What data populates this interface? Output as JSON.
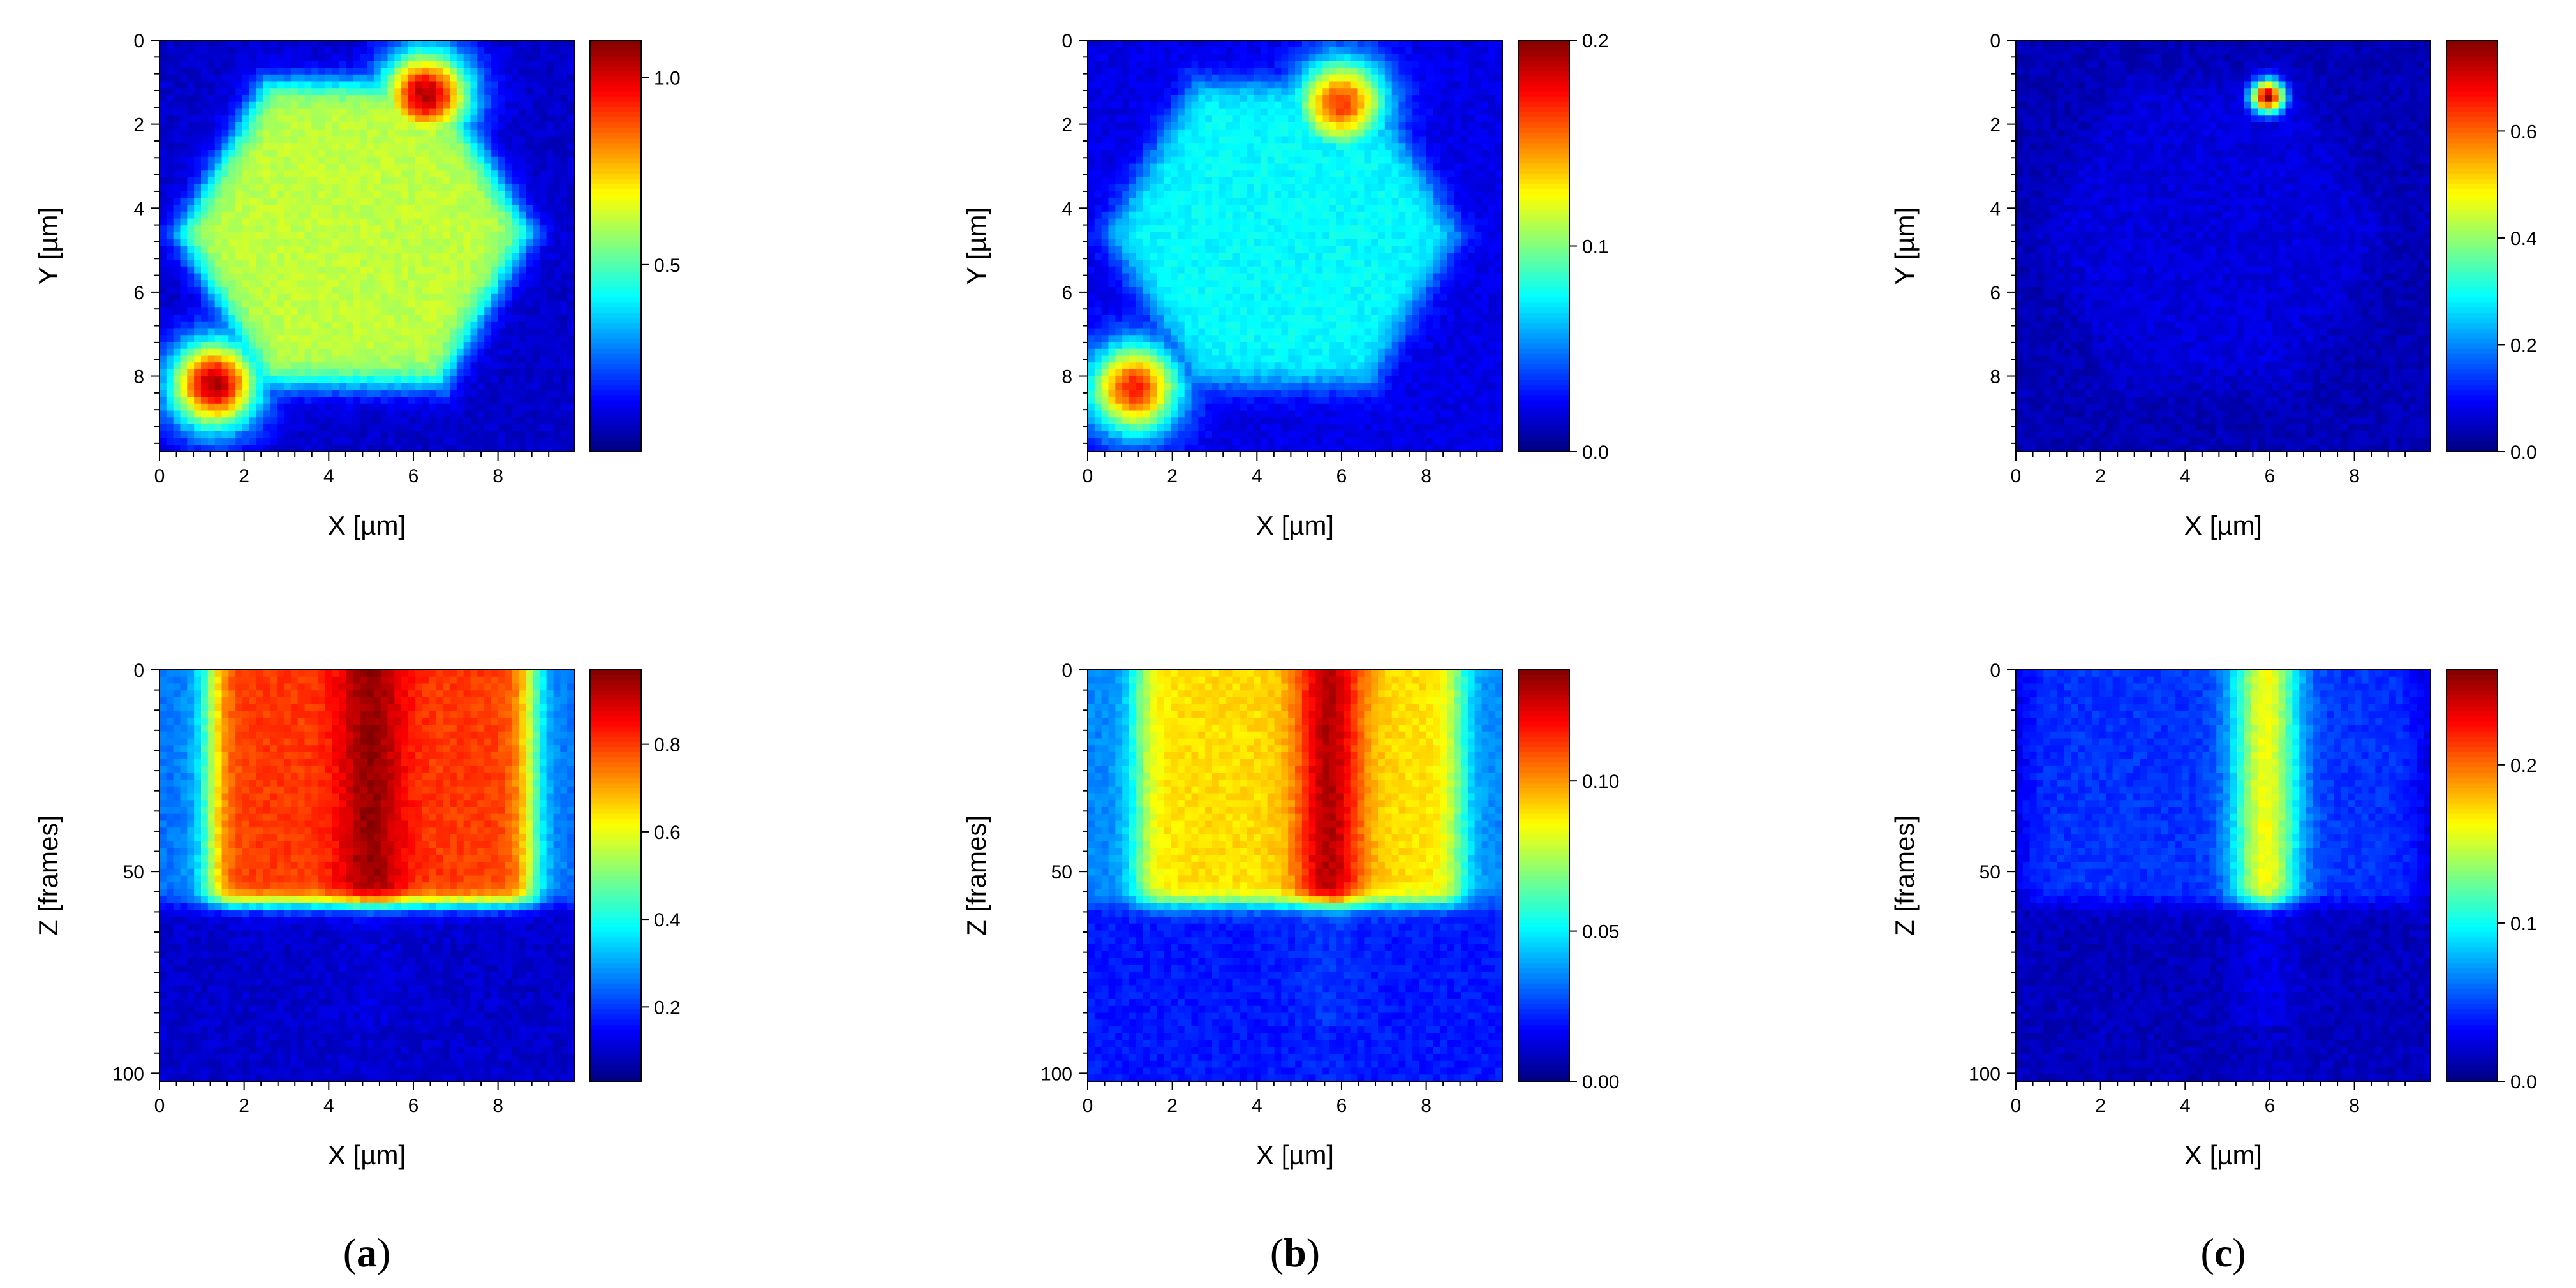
{
  "figure": {
    "panel_tags": [
      {
        "open": "(",
        "letter": "a",
        "close": ")"
      },
      {
        "open": "(",
        "letter": "b",
        "close": ")"
      },
      {
        "open": "(",
        "letter": "c",
        "close": ")"
      }
    ]
  },
  "chart_data": [
    {
      "type": "heatmap",
      "panel": "a",
      "view": "xy",
      "xlabel": "X [µm]",
      "ylabel": "Y [µm]",
      "xlim": [
        0,
        9.8
      ],
      "ylim": [
        9.8,
        0
      ],
      "xticks": [
        "0",
        "2",
        "4",
        "6",
        "8"
      ],
      "yticks": [
        "0",
        "2",
        "4",
        "6",
        "8"
      ],
      "colorbar": {
        "min": 0.0,
        "max": 1.1,
        "ticks": [
          "0.5",
          "1.0"
        ],
        "tick_values": [
          0.5,
          1.0
        ]
      },
      "features": {
        "background": 0.08,
        "hexagon": 0.62,
        "particles": [
          [
            6.3,
            1.3,
            1.05
          ],
          [
            1.3,
            8.2,
            1.05
          ]
        ],
        "spot": null
      }
    },
    {
      "type": "heatmap",
      "panel": "b",
      "view": "xy",
      "xlabel": "X [µm]",
      "ylabel": "Y [µm]",
      "xlim": [
        0,
        9.8
      ],
      "ylim": [
        9.8,
        0
      ],
      "xticks": [
        "0",
        "2",
        "4",
        "6",
        "8"
      ],
      "yticks": [
        "0",
        "2",
        "4",
        "6",
        "8"
      ],
      "colorbar": {
        "min": 0.0,
        "max": 0.2,
        "ticks": [
          "0.0",
          "0.1",
          "0.2"
        ],
        "tick_values": [
          0.0,
          0.1,
          0.2
        ]
      },
      "features": {
        "background": 0.02,
        "hexagon": 0.075,
        "particles": [
          [
            6.0,
            1.5,
            0.165
          ],
          [
            1.1,
            8.3,
            0.17
          ]
        ],
        "spot": null
      }
    },
    {
      "type": "heatmap",
      "panel": "c",
      "view": "xy",
      "xlabel": "X [µm]",
      "ylabel": "Y [µm]",
      "xlim": [
        0,
        9.8
      ],
      "ylim": [
        9.8,
        0
      ],
      "xticks": [
        "0",
        "2",
        "4",
        "6",
        "8"
      ],
      "yticks": [
        "0",
        "2",
        "4",
        "6",
        "8"
      ],
      "colorbar": {
        "min": 0.0,
        "max": 0.77,
        "ticks": [
          "0.0",
          "0.2",
          "0.4",
          "0.6"
        ],
        "tick_values": [
          0.0,
          0.2,
          0.4,
          0.6
        ]
      },
      "features": {
        "background": 0.04,
        "hexagon": 0.07,
        "particles": [],
        "spot": [
          5.95,
          1.35,
          0.75
        ]
      }
    },
    {
      "type": "heatmap",
      "panel": "a",
      "view": "xz",
      "xlabel": "X [µm]",
      "ylabel": "Z [frames]",
      "xlim": [
        0,
        9.8
      ],
      "ylim": [
        102,
        0
      ],
      "xticks": [
        "0",
        "2",
        "4",
        "6",
        "8"
      ],
      "yticks": [
        "0",
        "50",
        "100"
      ],
      "ytick_values": [
        0,
        50,
        100
      ],
      "colorbar": {
        "min": 0.03,
        "max": 0.97,
        "ticks": [
          "0.2",
          "0.4",
          "0.6",
          "0.8"
        ],
        "tick_values": [
          0.2,
          0.4,
          0.6,
          0.8
        ]
      },
      "features": {
        "block": [
          1.2,
          8.8,
          58
        ],
        "block_level": 0.8,
        "peak_x": 5.0,
        "peak_level": 0.95,
        "below_level": 0.1,
        "outside_level": 0.25
      }
    },
    {
      "type": "heatmap",
      "panel": "b",
      "view": "xz",
      "xlabel": "X [µm]",
      "ylabel": "Z [frames]",
      "xlim": [
        0,
        9.8
      ],
      "ylim": [
        102,
        0
      ],
      "xticks": [
        "0",
        "2",
        "4",
        "6",
        "8"
      ],
      "yticks": [
        "0",
        "50",
        "100"
      ],
      "ytick_values": [
        0,
        50,
        100
      ],
      "colorbar": {
        "min": 0.0,
        "max": 0.137,
        "ticks": [
          "0.00",
          "0.05",
          "0.10"
        ],
        "tick_values": [
          0.0,
          0.05,
          0.1
        ]
      },
      "features": {
        "block": [
          1.2,
          8.8,
          58
        ],
        "block_level": 0.09,
        "peak_x": 5.7,
        "peak_level": 0.13,
        "below_level": 0.02,
        "outside_level": 0.035
      }
    },
    {
      "type": "heatmap",
      "panel": "c",
      "view": "xz",
      "xlabel": "X [µm]",
      "ylabel": "Z [frames]",
      "xlim": [
        0,
        9.8
      ],
      "ylim": [
        102,
        0
      ],
      "xticks": [
        "0",
        "2",
        "4",
        "6",
        "8"
      ],
      "yticks": [
        "0",
        "50",
        "100"
      ],
      "ytick_values": [
        0,
        50,
        100
      ],
      "colorbar": {
        "min": 0.0,
        "max": 0.26,
        "ticks": [
          "0.0",
          "0.1",
          "0.2"
        ],
        "tick_values": [
          0.0,
          0.1,
          0.2
        ]
      },
      "features": {
        "block": [
          0.2,
          9.5,
          58
        ],
        "block_level": 0.045,
        "peak_x": 5.9,
        "peak_level": 0.16,
        "below_level": 0.015,
        "outside_level": 0.02
      }
    }
  ]
}
